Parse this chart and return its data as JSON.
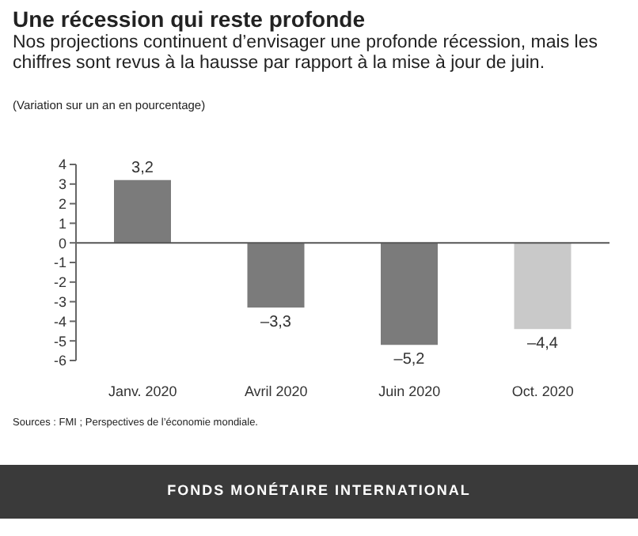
{
  "chart_data": {
    "type": "bar",
    "title": "Une récession qui reste profonde",
    "subtitle": "Nos projections continuent d’envisager une profonde récession, mais les chiffres sont revus à la hausse par rapport à la mise à jour de juin.",
    "categories": [
      "Janv. 2020",
      "Avril 2020",
      "Juin 2020",
      "Oct. 2020"
    ],
    "values": [
      3.2,
      -3.3,
      -5.2,
      -4.4
    ],
    "colors": [
      "#7b7b7b",
      "#7b7b7b",
      "#7b7b7b",
      "#c9c9c9"
    ],
    "value_labels": [
      "3,2",
      "–3,3",
      "–5,2",
      "–4,4"
    ],
    "ylim": [
      -6,
      4
    ],
    "yticks": [
      4,
      3,
      2,
      1,
      0,
      {
        "value": -1,
        "label": "-1"
      },
      {
        "value": -2,
        "label": "-2"
      },
      {
        "value": -3,
        "label": "-3"
      },
      {
        "value": -4,
        "label": "-4"
      },
      {
        "value": -5,
        "label": "-5"
      },
      {
        "value": -6,
        "label": "-6"
      }
    ],
    "ref_lines": [
      {
        "axis": "y",
        "value": 0,
        "color": "#555555"
      }
    ],
    "grid": false,
    "legend": false,
    "annotations": [
      "(Variation sur un an en pourcentage)",
      "Sources : FMI ; Perspectives de l’économie mondiale.",
      "FONDS MONÉTAIRE INTERNATIONAL"
    ]
  }
}
